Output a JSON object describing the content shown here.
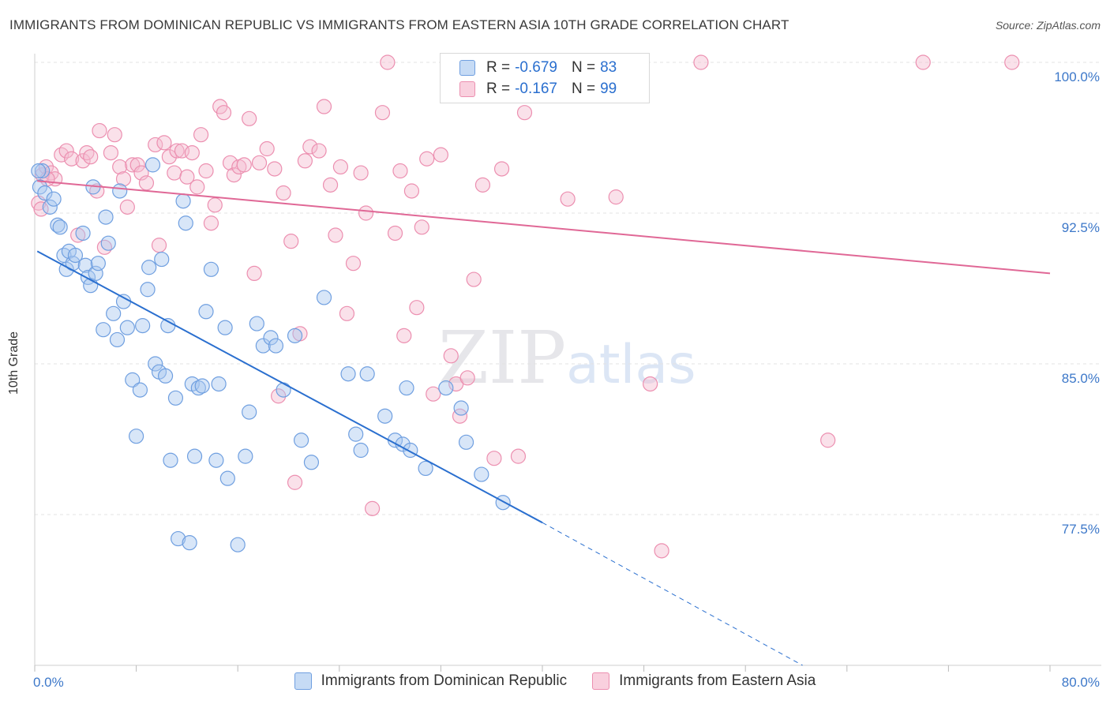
{
  "title": "IMMIGRANTS FROM DOMINICAN REPUBLIC VS IMMIGRANTS FROM EASTERN ASIA 10TH GRADE CORRELATION CHART",
  "source": "Source: ZipAtlas.com",
  "watermark": {
    "zip": "ZIP",
    "atlas": "atlas"
  },
  "legend": {
    "r_label": "R =",
    "n_label": "N =",
    "series": [
      {
        "r": "-0.679",
        "n": "83"
      },
      {
        "r": "-0.167",
        "n": "99"
      }
    ]
  },
  "chart_data": {
    "type": "scatter",
    "ylabel": "10th Grade",
    "xlim": [
      0,
      80
    ],
    "ylim": [
      70.0,
      101.0
    ],
    "x_tick_labels": {
      "left": "0.0%",
      "right": "80.0%"
    },
    "y_ticks": [
      {
        "value": 100.0,
        "label": "100.0%"
      },
      {
        "value": 92.5,
        "label": "92.5%"
      },
      {
        "value": 85.0,
        "label": "85.0%"
      },
      {
        "value": 77.5,
        "label": "77.5%"
      }
    ],
    "colors": {
      "blue_fill": "#a9c7ef",
      "blue_stroke": "#6f9fe0",
      "blue_line": "#2a6fcf",
      "pink_fill": "#f5bcd0",
      "pink_stroke": "#ec8fb0",
      "pink_line": "#e06896"
    },
    "series": [
      {
        "name": "Immigrants from Dominican Republic",
        "color": "#6f9fe0",
        "trend": {
          "x0": 0.2,
          "y0": 90.6,
          "x1": 40.0,
          "y1": 77.1,
          "dash_to_x": 60.5,
          "dash_to_y": 70.0
        },
        "points": [
          [
            0.4,
            93.8
          ],
          [
            0.6,
            94.6
          ],
          [
            0.8,
            93.5
          ],
          [
            1.2,
            92.8
          ],
          [
            1.5,
            93.2
          ],
          [
            1.8,
            91.9
          ],
          [
            2.0,
            91.8
          ],
          [
            2.3,
            90.4
          ],
          [
            2.5,
            89.7
          ],
          [
            2.7,
            90.6
          ],
          [
            3.0,
            90.0
          ],
          [
            3.2,
            90.4
          ],
          [
            3.8,
            91.5
          ],
          [
            4.0,
            89.9
          ],
          [
            4.2,
            89.3
          ],
          [
            4.4,
            88.9
          ],
          [
            4.6,
            93.8
          ],
          [
            4.8,
            89.5
          ],
          [
            5.0,
            90.0
          ],
          [
            5.4,
            86.7
          ],
          [
            5.6,
            92.3
          ],
          [
            5.8,
            91.0
          ],
          [
            6.2,
            87.5
          ],
          [
            6.5,
            86.2
          ],
          [
            6.7,
            93.6
          ],
          [
            7.0,
            88.1
          ],
          [
            7.3,
            86.8
          ],
          [
            7.7,
            84.2
          ],
          [
            8.0,
            81.4
          ],
          [
            8.3,
            83.7
          ],
          [
            8.5,
            86.9
          ],
          [
            8.9,
            88.7
          ],
          [
            9.0,
            89.8
          ],
          [
            9.3,
            94.9
          ],
          [
            9.5,
            85.0
          ],
          [
            9.8,
            84.6
          ],
          [
            10.0,
            90.2
          ],
          [
            10.3,
            84.4
          ],
          [
            10.5,
            86.9
          ],
          [
            10.7,
            80.2
          ],
          [
            11.1,
            83.3
          ],
          [
            11.3,
            76.3
          ],
          [
            11.7,
            93.1
          ],
          [
            11.9,
            92.0
          ],
          [
            12.2,
            76.1
          ],
          [
            12.4,
            84.0
          ],
          [
            12.6,
            80.4
          ],
          [
            12.9,
            83.8
          ],
          [
            13.2,
            83.9
          ],
          [
            13.5,
            87.6
          ],
          [
            13.9,
            89.7
          ],
          [
            14.3,
            80.2
          ],
          [
            14.5,
            84.0
          ],
          [
            15.0,
            86.8
          ],
          [
            15.2,
            79.3
          ],
          [
            16.0,
            76.0
          ],
          [
            16.6,
            80.4
          ],
          [
            16.9,
            82.6
          ],
          [
            17.5,
            87.0
          ],
          [
            18.0,
            85.9
          ],
          [
            18.6,
            86.3
          ],
          [
            19.0,
            85.9
          ],
          [
            19.6,
            83.7
          ],
          [
            20.5,
            86.4
          ],
          [
            21.0,
            81.2
          ],
          [
            21.8,
            80.1
          ],
          [
            22.8,
            88.3
          ],
          [
            24.7,
            84.5
          ],
          [
            25.3,
            81.5
          ],
          [
            25.7,
            80.7
          ],
          [
            26.2,
            84.5
          ],
          [
            27.6,
            82.4
          ],
          [
            28.4,
            81.2
          ],
          [
            29.0,
            81.0
          ],
          [
            29.3,
            83.8
          ],
          [
            29.6,
            80.7
          ],
          [
            30.8,
            79.8
          ],
          [
            32.4,
            83.8
          ],
          [
            33.6,
            82.8
          ],
          [
            34.0,
            81.1
          ],
          [
            35.2,
            79.5
          ],
          [
            36.9,
            78.1
          ],
          [
            0.3,
            94.6
          ]
        ]
      },
      {
        "name": "Immigrants from Eastern Asia",
        "color": "#ec8fb0",
        "trend": {
          "x0": 0.2,
          "y0": 94.1,
          "x1": 80.0,
          "y1": 89.5
        },
        "points": [
          [
            0.3,
            93.0
          ],
          [
            0.6,
            94.4
          ],
          [
            0.9,
            94.8
          ],
          [
            1.3,
            94.5
          ],
          [
            1.6,
            94.2
          ],
          [
            2.1,
            95.4
          ],
          [
            2.5,
            95.6
          ],
          [
            2.9,
            95.2
          ],
          [
            3.4,
            91.4
          ],
          [
            3.8,
            95.1
          ],
          [
            4.1,
            95.5
          ],
          [
            4.4,
            95.3
          ],
          [
            4.9,
            93.6
          ],
          [
            5.1,
            96.6
          ],
          [
            5.5,
            90.8
          ],
          [
            6.0,
            95.5
          ],
          [
            6.3,
            96.4
          ],
          [
            6.7,
            94.8
          ],
          [
            7.0,
            94.2
          ],
          [
            7.3,
            92.8
          ],
          [
            7.7,
            94.9
          ],
          [
            8.1,
            94.9
          ],
          [
            8.4,
            94.5
          ],
          [
            8.8,
            94.0
          ],
          [
            9.5,
            95.9
          ],
          [
            9.8,
            90.9
          ],
          [
            10.2,
            96.0
          ],
          [
            10.6,
            95.3
          ],
          [
            11.0,
            94.5
          ],
          [
            11.2,
            95.6
          ],
          [
            11.6,
            95.6
          ],
          [
            12.0,
            94.3
          ],
          [
            12.4,
            95.5
          ],
          [
            12.8,
            93.8
          ],
          [
            13.1,
            96.4
          ],
          [
            13.5,
            94.6
          ],
          [
            13.9,
            92.0
          ],
          [
            14.2,
            92.9
          ],
          [
            14.6,
            97.8
          ],
          [
            14.9,
            97.5
          ],
          [
            15.4,
            95.0
          ],
          [
            15.7,
            94.4
          ],
          [
            16.1,
            94.8
          ],
          [
            16.5,
            94.9
          ],
          [
            16.9,
            97.2
          ],
          [
            17.3,
            89.5
          ],
          [
            17.7,
            95.0
          ],
          [
            18.3,
            95.7
          ],
          [
            18.9,
            94.7
          ],
          [
            19.2,
            83.4
          ],
          [
            19.6,
            93.5
          ],
          [
            20.2,
            91.1
          ],
          [
            20.5,
            79.1
          ],
          [
            20.9,
            86.5
          ],
          [
            21.3,
            95.1
          ],
          [
            21.7,
            95.8
          ],
          [
            22.4,
            95.6
          ],
          [
            22.8,
            97.8
          ],
          [
            23.3,
            93.9
          ],
          [
            23.7,
            91.4
          ],
          [
            24.1,
            94.8
          ],
          [
            24.6,
            87.5
          ],
          [
            25.1,
            90.0
          ],
          [
            25.7,
            94.5
          ],
          [
            26.1,
            92.5
          ],
          [
            26.6,
            77.8
          ],
          [
            27.4,
            97.5
          ],
          [
            27.8,
            100.0
          ],
          [
            28.4,
            91.5
          ],
          [
            28.8,
            94.6
          ],
          [
            29.1,
            86.4
          ],
          [
            29.7,
            93.6
          ],
          [
            30.1,
            87.8
          ],
          [
            30.5,
            91.8
          ],
          [
            30.9,
            95.2
          ],
          [
            31.4,
            83.5
          ],
          [
            32.0,
            95.4
          ],
          [
            32.8,
            85.4
          ],
          [
            33.2,
            84.0
          ],
          [
            33.5,
            82.4
          ],
          [
            34.1,
            84.3
          ],
          [
            34.6,
            89.2
          ],
          [
            35.3,
            93.9
          ],
          [
            36.2,
            80.3
          ],
          [
            36.8,
            94.7
          ],
          [
            37.5,
            100.0
          ],
          [
            38.1,
            80.4
          ],
          [
            38.6,
            97.5
          ],
          [
            42.0,
            93.2
          ],
          [
            42.8,
            100.0
          ],
          [
            45.8,
            93.3
          ],
          [
            48.5,
            84.0
          ],
          [
            49.4,
            75.7
          ],
          [
            52.5,
            100.0
          ],
          [
            62.5,
            81.2
          ],
          [
            70.0,
            100.0
          ],
          [
            77.0,
            100.0
          ],
          [
            0.5,
            92.7
          ],
          [
            1.0,
            94.2
          ]
        ]
      }
    ]
  }
}
